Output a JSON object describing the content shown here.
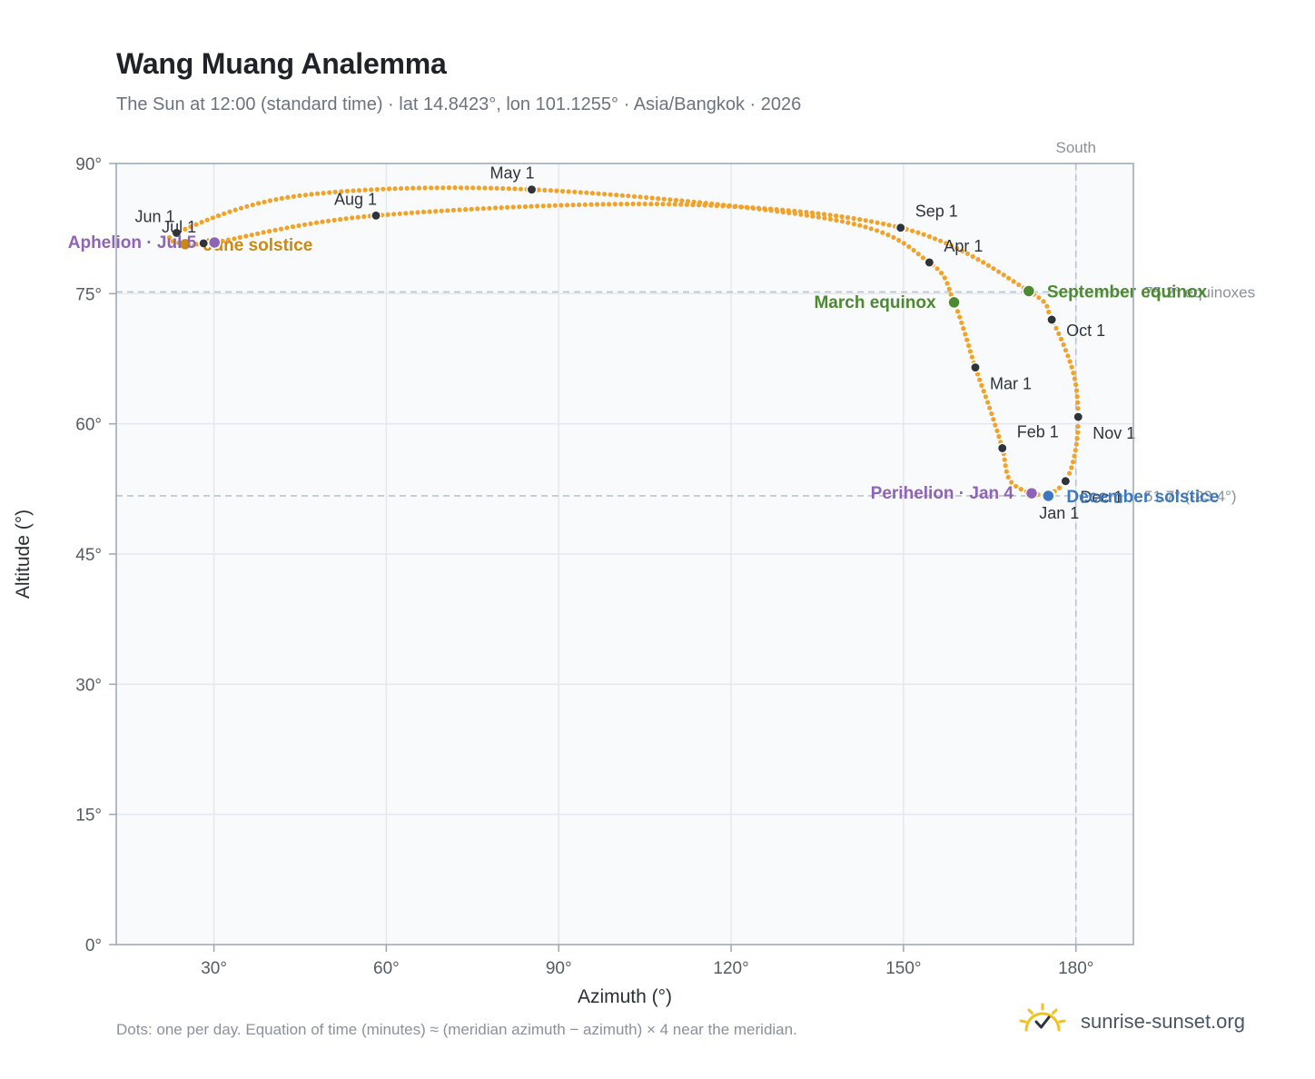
{
  "header": {
    "title": "Wang Muang Analemma",
    "subtitle": "The Sun at 12:00 (standard time) · lat 14.8423°, lon 101.1255° · Asia/Bangkok · 2026"
  },
  "footer": {
    "note": "Dots: one per day. Equation of time (minutes) ≈ (meridian azimuth − azimuth) × 4 near the meridian.",
    "brand": "sunrise-sunset.org"
  },
  "colors": {
    "analemma": "#f2a327",
    "month_marker": "#2f343b",
    "equinox": "#4b8a2e",
    "june_solstice": "#c98a12",
    "december_solstice": "#3a78c2",
    "apsis": "#8f63b5",
    "reference": "#b9c3cf",
    "plot_bg": "#f8fafc",
    "grid": "#e4e8ee",
    "frame": "#9aa6b4",
    "brand_sun": "#f2c21b"
  },
  "chart_data": {
    "type": "scatter",
    "title": "Wang Muang Analemma",
    "xlabel": "Azimuth (°)",
    "ylabel": "Altitude (°)",
    "xlim": [
      13,
      190
    ],
    "ylim": [
      0,
      90
    ],
    "x_ticks": [
      {
        "value": 30,
        "label": "30°"
      },
      {
        "value": 60,
        "label": "60°"
      },
      {
        "value": 90,
        "label": "90°"
      },
      {
        "value": 120,
        "label": "120°"
      },
      {
        "value": 150,
        "label": "150°"
      },
      {
        "value": 180,
        "label": "180°"
      }
    ],
    "y_ticks": [
      {
        "value": 0,
        "label": "0°"
      },
      {
        "value": 15,
        "label": "15°"
      },
      {
        "value": 30,
        "label": "30°"
      },
      {
        "value": 45,
        "label": "45°"
      },
      {
        "value": 60,
        "label": "60°"
      },
      {
        "value": 75,
        "label": "75°"
      },
      {
        "value": 90,
        "label": "90°"
      }
    ],
    "grid": true,
    "analemma_anchors": [
      {
        "date": "Jan 1",
        "x": 175.5,
        "y": 51.8
      },
      {
        "date": "Jan 4",
        "x": 172.3,
        "y": 52.0
      },
      {
        "date": "Jan 16",
        "x": 168.5,
        "y": 53.5
      },
      {
        "date": "Feb 1",
        "x": 167.2,
        "y": 57.2
      },
      {
        "date": "Feb 15",
        "x": 165.0,
        "y": 61.8
      },
      {
        "date": "Mar 1",
        "x": 162.5,
        "y": 66.5
      },
      {
        "date": "Mar 20",
        "x": 158.8,
        "y": 74.0
      },
      {
        "date": "Apr 1",
        "x": 154.5,
        "y": 78.6
      },
      {
        "date": "Apr 15",
        "x": 138.0,
        "y": 83.5
      },
      {
        "date": "May 1",
        "x": 85.3,
        "y": 87.0
      },
      {
        "date": "May 15",
        "x": 45.0,
        "y": 86.3
      },
      {
        "date": "Jun 1",
        "x": 23.5,
        "y": 82.0
      },
      {
        "date": "Jun 21",
        "x": 25.0,
        "y": 80.7
      },
      {
        "date": "Jul 1",
        "x": 28.2,
        "y": 80.8
      },
      {
        "date": "Jul 5",
        "x": 30.1,
        "y": 80.9
      },
      {
        "date": "Aug 1",
        "x": 58.2,
        "y": 84.0
      },
      {
        "date": "Aug 15",
        "x": 110.0,
        "y": 85.3
      },
      {
        "date": "Sep 1",
        "x": 149.5,
        "y": 82.6
      },
      {
        "date": "Sep 23",
        "x": 171.8,
        "y": 75.3
      },
      {
        "date": "Oct 1",
        "x": 175.8,
        "y": 72.0
      },
      {
        "date": "Oct 16",
        "x": 179.5,
        "y": 66.0
      },
      {
        "date": "Nov 1",
        "x": 180.4,
        "y": 60.8
      },
      {
        "date": "Nov 16",
        "x": 179.8,
        "y": 56.5
      },
      {
        "date": "Dec 1",
        "x": 178.2,
        "y": 53.4
      },
      {
        "date": "Dec 21",
        "x": 175.2,
        "y": 51.7
      },
      {
        "date": "Dec 31",
        "x": 175.5,
        "y": 51.8
      }
    ],
    "month_markers": [
      {
        "label": "Jan 1",
        "x": 175.5,
        "y": 51.8,
        "pos": "below"
      },
      {
        "label": "Feb 1",
        "x": 167.2,
        "y": 57.2,
        "pos": "upright"
      },
      {
        "label": "Mar 1",
        "x": 162.5,
        "y": 66.5,
        "pos": "lowright"
      },
      {
        "label": "Apr 1",
        "x": 154.5,
        "y": 78.6,
        "pos": "upright"
      },
      {
        "label": "May 1",
        "x": 85.3,
        "y": 87.0,
        "pos": "upleft"
      },
      {
        "label": "Jun 1",
        "x": 23.5,
        "y": 82.0,
        "pos": "upleft"
      },
      {
        "label": "Jul 1",
        "x": 28.2,
        "y": 80.8,
        "pos": "upleft"
      },
      {
        "label": "Aug 1",
        "x": 58.2,
        "y": 84.0,
        "pos": "upleft"
      },
      {
        "label": "Sep 1",
        "x": 149.5,
        "y": 82.6,
        "pos": "upright"
      },
      {
        "label": "Oct 1",
        "x": 175.8,
        "y": 72.0,
        "pos": "right"
      },
      {
        "label": "Nov 1",
        "x": 180.4,
        "y": 60.8,
        "pos": "lowright"
      },
      {
        "label": "Dec 1",
        "x": 178.2,
        "y": 53.4,
        "pos": "lowright"
      }
    ],
    "events": [
      {
        "label": "March equinox",
        "x": 158.8,
        "y": 74.0,
        "color_key": "equinox",
        "pos": "left"
      },
      {
        "label": "September equinox",
        "x": 171.8,
        "y": 75.3,
        "color_key": "equinox",
        "pos": "right"
      },
      {
        "label": "June solstice",
        "x": 25.0,
        "y": 80.7,
        "color_key": "june_solstice",
        "pos": "right"
      },
      {
        "label": "December solstice",
        "x": 175.2,
        "y": 51.7,
        "color_key": "december_solstice",
        "pos": "right"
      },
      {
        "label": "Perihelion · Jan 4",
        "x": 172.3,
        "y": 52.0,
        "color_key": "apsis",
        "pos": "left"
      },
      {
        "label": "Aphelion · Jul 5",
        "x": 30.1,
        "y": 80.9,
        "color_key": "apsis",
        "pos": "left"
      }
    ],
    "reference_lines": [
      {
        "axis": "x",
        "value": 180,
        "label": "South"
      },
      {
        "axis": "y",
        "value": 75.2,
        "label": "75.2° equinoxes"
      },
      {
        "axis": "y",
        "value": 51.7,
        "label": "51.7° (-23.4°)"
      }
    ]
  }
}
